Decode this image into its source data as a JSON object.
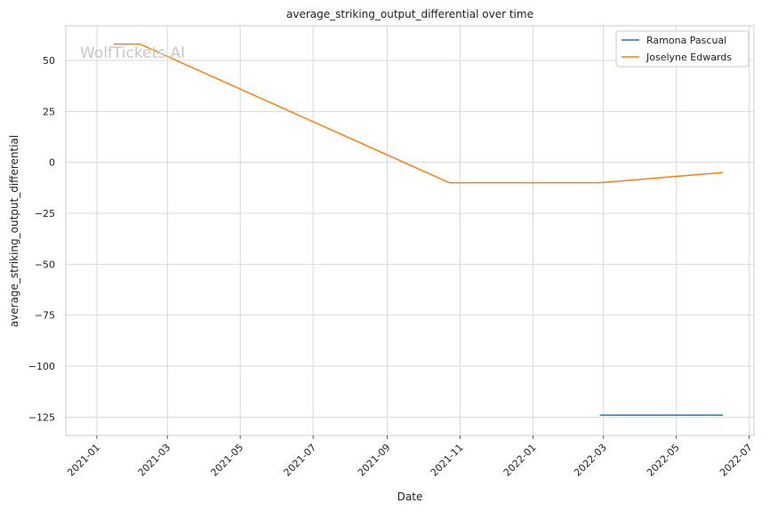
{
  "chart_data": {
    "type": "line",
    "title": "average_striking_output_differential over time",
    "xlabel": "Date",
    "ylabel": "average_striking_output_differential",
    "watermark": "WolfTickets.AI",
    "x_type": "date",
    "xlim": [
      "2020-12-06",
      "2022-07-05"
    ],
    "ylim": [
      -134,
      67
    ],
    "x_ticks": [
      "2021-01",
      "2021-03",
      "2021-05",
      "2021-07",
      "2021-09",
      "2021-11",
      "2022-01",
      "2022-03",
      "2022-05",
      "2022-07"
    ],
    "y_ticks": [
      50,
      25,
      0,
      -25,
      -50,
      -75,
      -100,
      -125
    ],
    "y_tick_labels": [
      "50",
      "25",
      "0",
      "−25",
      "−50",
      "−75",
      "−100",
      "−125"
    ],
    "grid": true,
    "legend_position": "top-right",
    "series": [
      {
        "name": "Ramona Pascual",
        "color": "#1f77b4",
        "points": [
          {
            "x": "2022-02-26",
            "y": -124
          },
          {
            "x": "2022-06-09",
            "y": -124
          }
        ]
      },
      {
        "name": "Joselyne Edwards",
        "color": "#ff7f0e",
        "points": [
          {
            "x": "2021-01-15",
            "y": 58
          },
          {
            "x": "2021-02-06",
            "y": 58
          },
          {
            "x": "2021-10-23",
            "y": -10
          },
          {
            "x": "2022-02-26",
            "y": -10
          },
          {
            "x": "2022-06-09",
            "y": -5
          }
        ]
      }
    ]
  }
}
